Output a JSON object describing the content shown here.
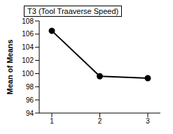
{
  "chart_data": {
    "type": "line",
    "title": "T3 (Tool Traaverse Speed)",
    "y_label": "Mean of Means",
    "categories": [
      "1",
      "2",
      "3"
    ],
    "values": [
      106.5,
      99.6,
      99.3
    ],
    "color": "#000000",
    "marker": "circle",
    "ylim": [
      94,
      108
    ],
    "yticks": [
      94,
      96,
      98,
      100,
      102,
      104,
      106,
      108
    ],
    "grid": false
  }
}
